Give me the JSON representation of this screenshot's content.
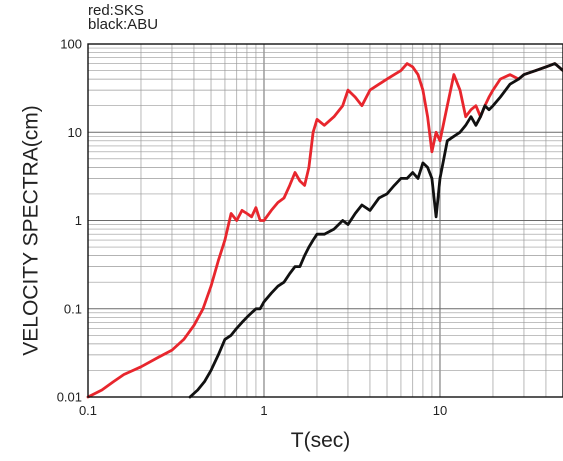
{
  "legend": {
    "line1": "red:SKS",
    "line2": "black:ABU"
  },
  "chart_data": {
    "type": "line",
    "xlabel": "T(sec)",
    "ylabel": "VELOCITY SPECTRA(cm)",
    "xscale": "log",
    "yscale": "log",
    "xlim": [
      0.1,
      50
    ],
    "ylim": [
      0.01,
      100
    ],
    "grid": true,
    "x_ticks": [
      {
        "value": 0.1,
        "label": "0.1"
      },
      {
        "value": 1,
        "label": "1"
      },
      {
        "value": 10,
        "label": "10"
      }
    ],
    "y_ticks": [
      {
        "value": 0.01,
        "label": "0.01"
      },
      {
        "value": 0.1,
        "label": "0.1"
      },
      {
        "value": 1,
        "label": "1"
      },
      {
        "value": 10,
        "label": "10"
      },
      {
        "value": 100,
        "label": "100"
      }
    ],
    "series": [
      {
        "name": "SKS",
        "color": "#e8262d",
        "x": [
          0.1,
          0.12,
          0.14,
          0.16,
          0.2,
          0.25,
          0.3,
          0.35,
          0.4,
          0.45,
          0.5,
          0.55,
          0.6,
          0.65,
          0.7,
          0.75,
          0.8,
          0.85,
          0.9,
          0.95,
          1.0,
          1.1,
          1.2,
          1.3,
          1.4,
          1.5,
          1.6,
          1.7,
          1.8,
          1.9,
          2.0,
          2.2,
          2.5,
          2.8,
          3.0,
          3.3,
          3.6,
          4.0,
          4.5,
          5.0,
          5.5,
          6.0,
          6.5,
          7.0,
          7.5,
          8.0,
          8.5,
          9.0,
          9.5,
          10.0,
          11.0,
          12.0,
          13.0,
          14.0,
          15.0,
          16.0,
          17.0,
          18.0,
          19.0,
          20.0,
          22.0,
          25.0,
          28.0,
          30.0,
          35.0,
          40.0,
          45.0,
          50.0
        ],
        "y": [
          0.01,
          0.012,
          0.015,
          0.018,
          0.022,
          0.028,
          0.034,
          0.045,
          0.065,
          0.1,
          0.18,
          0.35,
          0.6,
          1.2,
          1.0,
          1.3,
          1.2,
          1.1,
          1.4,
          1.0,
          1.0,
          1.3,
          1.6,
          1.8,
          2.5,
          3.5,
          2.8,
          2.5,
          4.0,
          10.0,
          14.0,
          12.0,
          15.0,
          20.0,
          30.0,
          25.0,
          20.0,
          30.0,
          35.0,
          40.0,
          45.0,
          50.0,
          60.0,
          55.0,
          45.0,
          30.0,
          15.0,
          6.0,
          10.0,
          8.0,
          20.0,
          45.0,
          30.0,
          15.0,
          18.0,
          20.0,
          15.0,
          20.0,
          25.0,
          30.0,
          40.0,
          45.0,
          40.0,
          45.0,
          50.0,
          55.0,
          60.0,
          50.0
        ]
      },
      {
        "name": "ABU",
        "color": "#111111",
        "x": [
          0.38,
          0.42,
          0.46,
          0.5,
          0.55,
          0.6,
          0.65,
          0.7,
          0.75,
          0.8,
          0.85,
          0.9,
          0.95,
          1.0,
          1.1,
          1.2,
          1.3,
          1.4,
          1.5,
          1.6,
          1.7,
          1.8,
          1.9,
          2.0,
          2.2,
          2.5,
          2.8,
          3.0,
          3.3,
          3.6,
          4.0,
          4.5,
          5.0,
          5.5,
          6.0,
          6.5,
          7.0,
          7.5,
          8.0,
          8.5,
          9.0,
          9.5,
          10.0,
          11.0,
          12.0,
          13.0,
          14.0,
          15.0,
          16.0,
          17.0,
          18.0,
          19.0,
          20.0,
          22.0,
          25.0,
          28.0,
          30.0,
          35.0,
          40.0,
          45.0,
          50.0
        ],
        "y": [
          0.01,
          0.012,
          0.015,
          0.02,
          0.03,
          0.045,
          0.05,
          0.06,
          0.07,
          0.08,
          0.09,
          0.1,
          0.1,
          0.12,
          0.15,
          0.18,
          0.2,
          0.25,
          0.3,
          0.3,
          0.4,
          0.5,
          0.6,
          0.7,
          0.7,
          0.8,
          1.0,
          0.9,
          1.2,
          1.5,
          1.3,
          1.8,
          2.0,
          2.5,
          3.0,
          3.0,
          3.5,
          3.0,
          4.5,
          4.0,
          3.0,
          1.1,
          3.0,
          8.0,
          9.0,
          10.0,
          12.0,
          15.0,
          12.0,
          15.0,
          20.0,
          18.0,
          20.0,
          25.0,
          35.0,
          40.0,
          45.0,
          50.0,
          55.0,
          60.0,
          50.0
        ]
      }
    ]
  }
}
